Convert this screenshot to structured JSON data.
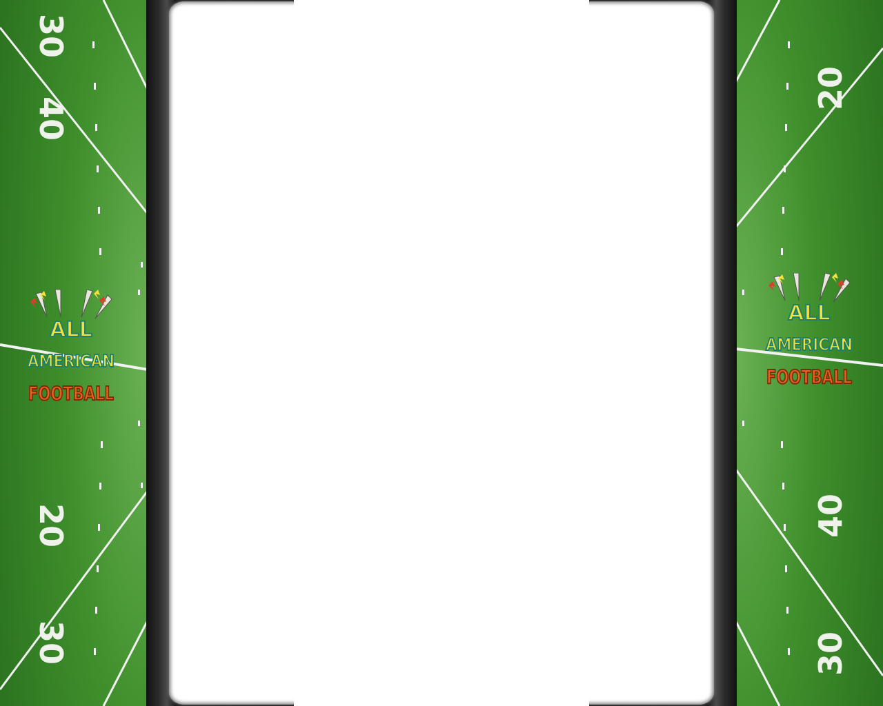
{
  "logo": {
    "line1": "ALL",
    "line2": "AMERICAN",
    "line3": "FOOTBALL"
  },
  "left_field": {
    "top_yard": "30",
    "middle_yard": "40",
    "bottom_yard": "20",
    "lower_yard": "30"
  },
  "right_field": {
    "top_yard": "20",
    "bottom_yard": "40",
    "lower_yard": "30"
  },
  "colors": {
    "turf": "#2f7a20",
    "turf_light": "#4c9a36",
    "lines": "#f2f2f2",
    "logo_yellow": "#f4e23a",
    "logo_teal": "#1f7f6e",
    "logo_orange": "#e8621c"
  }
}
